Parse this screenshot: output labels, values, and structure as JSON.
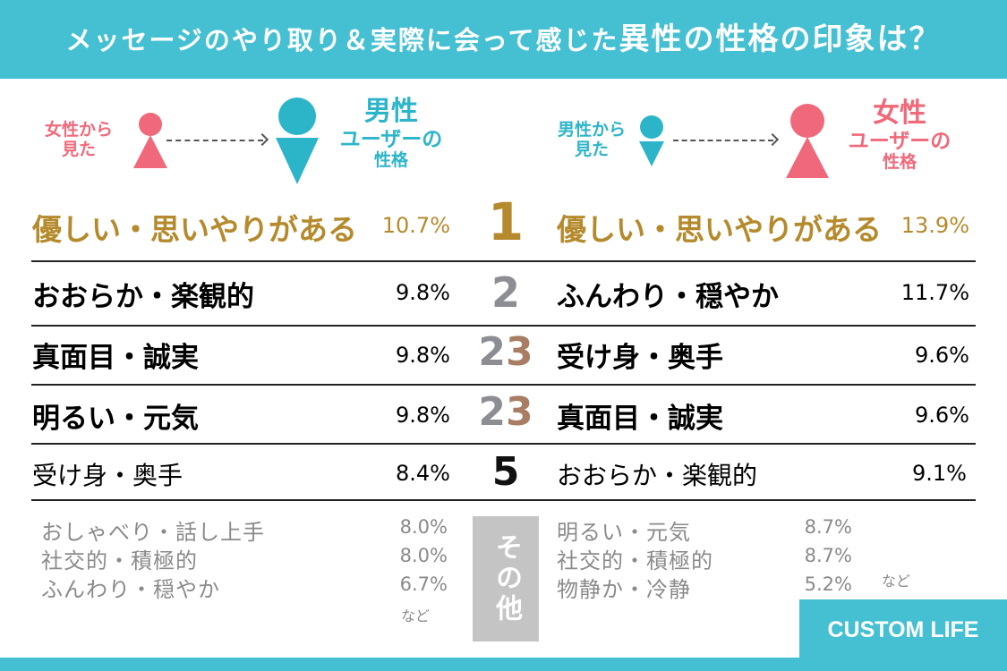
{
  "header": {
    "title_part1": "メッセージのやり取り＆実際に会って感じた",
    "title_part2": "異性の性格の印象は？",
    "color": "#45c0d3"
  },
  "left_panel": {
    "from_label_line1": "女性から",
    "from_label_line2": "見た",
    "to_label_line1": "男性",
    "to_label_line2": "ユーザーの",
    "to_label_line3": "性格"
  },
  "right_panel": {
    "from_label_line1": "男性から",
    "from_label_line2": "見た",
    "to_label_line1": "女性",
    "to_label_line2": "ユーザーの",
    "to_label_line3": "性格"
  },
  "colors": {
    "pink": "#f0697a",
    "teal": "#2cb5c9",
    "gold": "#b58a2c",
    "silver": "#8c8e94",
    "bronze": "#a87d63"
  },
  "chart_data": [
    {
      "type": "table",
      "title": "男性ユーザーの性格",
      "rows": [
        {
          "rank": "1",
          "name": "優しい・思いやりがある",
          "value": 10.7,
          "label": "10.7%"
        },
        {
          "rank": "2",
          "name": "おおらか・楽観的",
          "value": 9.8,
          "label": "9.8%"
        },
        {
          "rank": "3",
          "name": "真面目・誠実",
          "value": 9.8,
          "label": "9.8%"
        },
        {
          "rank": "3",
          "name": "明るい・元気",
          "value": 9.8,
          "label": "9.8%"
        },
        {
          "rank": "5",
          "name": "受け身・奥手",
          "value": 8.4,
          "label": "8.4%"
        }
      ],
      "others": [
        {
          "name": "おしゃべり・話し上手",
          "value": 8.0,
          "label": "8.0%"
        },
        {
          "name": "社交的・積極的",
          "value": 8.0,
          "label": "8.0%"
        },
        {
          "name": "ふんわり・穏やか",
          "value": 6.7,
          "label": "6.7%"
        }
      ],
      "others_note": "など"
    },
    {
      "type": "table",
      "title": "女性ユーザーの性格",
      "rows": [
        {
          "rank": "1",
          "name": "優しい・思いやりがある",
          "value": 13.9,
          "label": "13.9%"
        },
        {
          "rank": "2",
          "name": "ふんわり・穏やか",
          "value": 11.7,
          "label": "11.7%"
        },
        {
          "rank": "3",
          "name": "受け身・奥手",
          "value": 9.6,
          "label": "9.6%"
        },
        {
          "rank": "3",
          "name": "真面目・誠実",
          "value": 9.6,
          "label": "9.6%"
        },
        {
          "rank": "5",
          "name": "おおらか・楽観的",
          "value": 9.1,
          "label": "9.1%"
        }
      ],
      "others": [
        {
          "name": "明るい・元気",
          "value": 8.7,
          "label": "8.7%"
        },
        {
          "name": "社交的・積極的",
          "value": 8.7,
          "label": "8.7%"
        },
        {
          "name": "物静か・冷静",
          "value": 5.2,
          "label": "5.2%"
        }
      ],
      "others_note": "など"
    }
  ],
  "ranks": {
    "r1": "1",
    "r2": "2",
    "r3a_2": "2",
    "r3a_3": "3",
    "r3b_2": "2",
    "r3b_3": "3",
    "r5": "5"
  },
  "others_label": "その他",
  "logo": {
    "text": "CUSTOM LIFE"
  }
}
